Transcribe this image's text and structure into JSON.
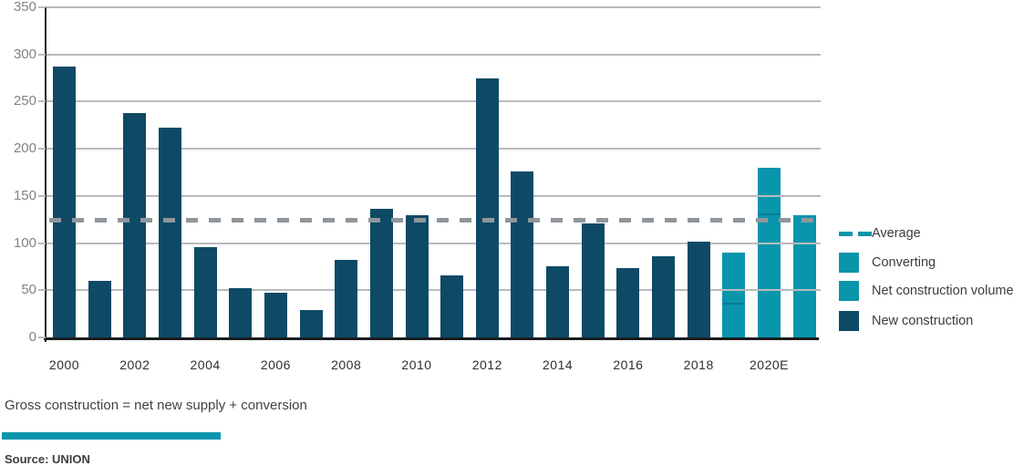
{
  "chart_data": {
    "type": "bar",
    "title": "",
    "ylim": [
      0,
      350
    ],
    "y_ticks": [
      0,
      50,
      100,
      150,
      200,
      250,
      300,
      350
    ],
    "x_tick_labels": [
      "2000",
      "2002",
      "2004",
      "2006",
      "2008",
      "2010",
      "2012",
      "2014",
      "2016",
      "2018",
      "2020E"
    ],
    "grid": "horizontal",
    "legend_position": "right",
    "average_line": {
      "value": 124,
      "label": "Average"
    },
    "bars": [
      {
        "year": "2000",
        "value": 287,
        "series": "New construction"
      },
      {
        "year": "2001",
        "value": 60,
        "series": "New construction"
      },
      {
        "year": "2002",
        "value": 238,
        "series": "New construction"
      },
      {
        "year": "2003",
        "value": 222,
        "series": "New construction"
      },
      {
        "year": "2004",
        "value": 96,
        "series": "New construction"
      },
      {
        "year": "2005",
        "value": 52,
        "series": "New construction"
      },
      {
        "year": "2006",
        "value": 47,
        "series": "New construction"
      },
      {
        "year": "2007",
        "value": 29,
        "series": "New construction"
      },
      {
        "year": "2008",
        "value": 82,
        "series": "New construction"
      },
      {
        "year": "2009",
        "value": 136,
        "series": "New construction"
      },
      {
        "year": "2010",
        "value": 130,
        "series": "New construction"
      },
      {
        "year": "2011",
        "value": 66,
        "series": "New construction"
      },
      {
        "year": "2012",
        "value": 275,
        "series": "New construction"
      },
      {
        "year": "2013",
        "value": 176,
        "series": "New construction"
      },
      {
        "year": "2014",
        "value": 75,
        "series": "New construction"
      },
      {
        "year": "2015",
        "value": 121,
        "series": "New construction"
      },
      {
        "year": "2016",
        "value": 73,
        "series": "New construction"
      },
      {
        "year": "2017",
        "value": 86,
        "series": "New construction"
      },
      {
        "year": "2018",
        "value": 102,
        "series": "New construction"
      },
      {
        "year": "2019",
        "value": 90,
        "series": "Net construction volume + Converting",
        "segments": [
          35,
          55
        ]
      },
      {
        "year": "2020E",
        "value": 180,
        "series": "Net construction volume + Converting",
        "segments": [
          130,
          50
        ]
      },
      {
        "year": "",
        "value": 130,
        "series": "Net construction volume"
      }
    ],
    "legend": [
      {
        "label": "Average",
        "swatch": "dashes",
        "color": "#0995AC"
      },
      {
        "label": "Converting",
        "swatch": "square",
        "color": "#0995AC"
      },
      {
        "label": "Net construction volume",
        "swatch": "square",
        "color": "#0995AC"
      },
      {
        "label": "New construction",
        "swatch": "square",
        "color": "#0E4A66"
      }
    ],
    "colors": {
      "new_construction": "#0E4A66",
      "converting": "#0995AC",
      "net_construction_volume": "#0995AC",
      "average_line_in_plot": "#8F969C",
      "gridline": "#B8BBBD",
      "axis": "#1A1C1E",
      "y_label": "#7F8285",
      "x_label": "#2D2F31",
      "legend_text": "#3A3D3F"
    }
  },
  "footer": {
    "formula": "Gross construction = net new supply + conversion",
    "accent_bar_color": "#0995AC",
    "source": "Source: UNION"
  }
}
